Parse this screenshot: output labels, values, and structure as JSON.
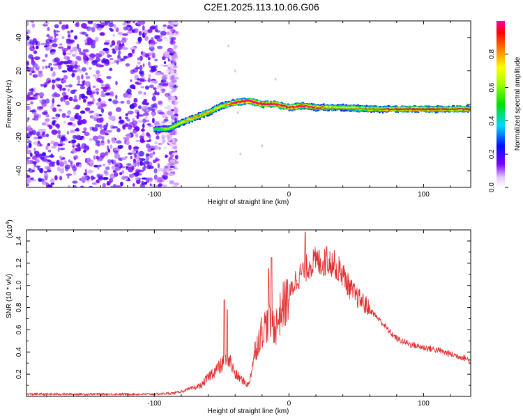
{
  "title": "C2E1.2025.113.10.06.G06",
  "chart_data": [
    {
      "type": "heatmap",
      "xlabel": "Height of straight line (km)",
      "ylabel": "Frequency (Hz)",
      "xlim": [
        -195,
        135
      ],
      "ylim": [
        -50,
        50
      ],
      "xticks": [
        -100,
        0,
        100
      ],
      "yticks": [
        -40,
        -20,
        0,
        20,
        40
      ],
      "colorbar": {
        "label": "Normalized spectral amplitude",
        "range": [
          0,
          1
        ],
        "ticks": [
          "0.0",
          "0.2",
          "0.4",
          "0.6",
          "0.8"
        ]
      },
      "noise_region_x": [
        -195,
        -80
      ],
      "signal_ridge": {
        "x": [
          -100,
          -90,
          -80,
          -70,
          -60,
          -50,
          -40,
          -30,
          -20,
          -10,
          0,
          10,
          20,
          40,
          60,
          80,
          100,
          120,
          135
        ],
        "y": [
          -15,
          -15,
          -11,
          -8,
          -5,
          -1,
          1,
          2,
          0,
          0,
          -2,
          -1,
          -2,
          -2,
          -3,
          -3,
          -3,
          -3,
          -3
        ],
        "amplitude": [
          0.45,
          0.55,
          0.65,
          0.75,
          0.7,
          0.65,
          0.9,
          0.95,
          0.95,
          0.9,
          0.85,
          0.9,
          0.8,
          0.6,
          0.75,
          0.85,
          0.9,
          0.85,
          0.85
        ]
      }
    },
    {
      "type": "line",
      "xlabel": "Height of straight line (km)",
      "ylabel": "SNR (10 * v/v)",
      "yscale_label": "(x10",
      "yscale_exp": "4",
      "xlim": [
        -195,
        135
      ],
      "ylim": [
        0,
        1.5
      ],
      "xticks": [
        -100,
        0,
        100
      ],
      "yticks": [
        "0.2",
        "0.4",
        "0.6",
        "0.8",
        "1.0",
        "1.2",
        "1.4"
      ],
      "color": "#e03030",
      "envelope": {
        "x": [
          -195,
          -100,
          -85,
          -75,
          -65,
          -58,
          -50,
          -45,
          -40,
          -35,
          -30,
          -25,
          -20,
          -15,
          -10,
          -5,
          0,
          5,
          10,
          15,
          20,
          25,
          30,
          35,
          40,
          45,
          50,
          55,
          60,
          65,
          70,
          75,
          80,
          90,
          100,
          110,
          120,
          130,
          135
        ],
        "y": [
          0.02,
          0.02,
          0.03,
          0.06,
          0.1,
          0.2,
          0.28,
          0.35,
          0.2,
          0.15,
          0.1,
          0.42,
          0.6,
          0.68,
          0.62,
          0.8,
          0.9,
          1.05,
          1.12,
          1.18,
          1.22,
          1.2,
          1.22,
          1.18,
          1.1,
          0.98,
          0.9,
          0.85,
          0.78,
          0.72,
          0.65,
          0.58,
          0.52,
          0.47,
          0.44,
          0.42,
          0.38,
          0.35,
          0.32
        ]
      },
      "peaks": [
        {
          "x": -48,
          "y": 0.87
        },
        {
          "x": -46,
          "y": 0.78
        },
        {
          "x": -15,
          "y": 1.15
        },
        {
          "x": -13,
          "y": 1.25
        },
        {
          "x": 12,
          "y": 1.48
        },
        {
          "x": 28,
          "y": 1.35
        },
        {
          "x": 36,
          "y": 1.05
        }
      ]
    }
  ]
}
